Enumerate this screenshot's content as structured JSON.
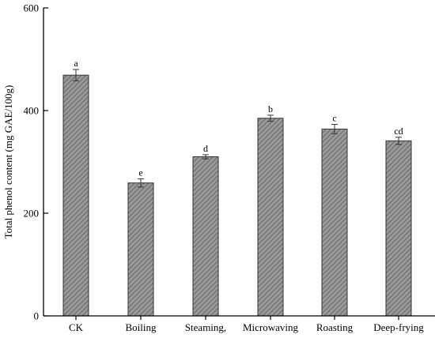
{
  "chart_data": {
    "type": "bar",
    "title": "",
    "xlabel": "",
    "ylabel": "Total phenol content (mg GAE/100g)",
    "ylim": [
      0,
      600
    ],
    "yticks": [
      0,
      200,
      400,
      600
    ],
    "grid": false,
    "categories": [
      "CK",
      "Boiling",
      "Steaming,",
      "Microwaving",
      "Roasting",
      "Deep-frying"
    ],
    "values": [
      469,
      259,
      310,
      385,
      364,
      341
    ],
    "errors": [
      11,
      8,
      4,
      6,
      9,
      7
    ],
    "significance": [
      "a",
      "e",
      "d",
      "b",
      "c",
      "cd"
    ],
    "bar_color": "#999999"
  }
}
